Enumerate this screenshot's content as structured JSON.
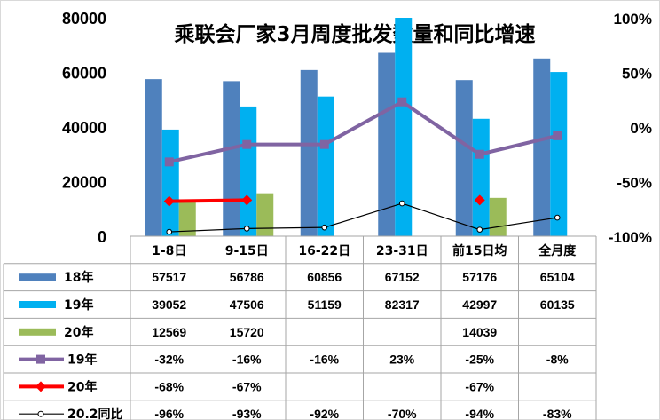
{
  "chart_data": {
    "type": "bar",
    "title": "乘联会厂家3月周度批发数量和同比增速",
    "categories": [
      "1-8日",
      "9-15日",
      "16-22日",
      "23-31日",
      "前15日均",
      "全月度"
    ],
    "left_axis": {
      "ticks": [
        "0",
        "20000",
        "40000",
        "60000",
        "80000"
      ],
      "ylim": [
        0,
        80000
      ]
    },
    "right_axis": {
      "ticks": [
        "-100%",
        "-50%",
        "0%",
        "50%",
        "100%"
      ],
      "ylim": [
        -100,
        100
      ]
    },
    "bar_series": [
      {
        "name": "18年",
        "color": "#4f81bd",
        "values": [
          57517,
          56786,
          60856,
          67152,
          57176,
          65104
        ]
      },
      {
        "name": "19年",
        "color": "#00b0f0",
        "values": [
          39052,
          47506,
          51159,
          82317,
          42997,
          60135
        ]
      },
      {
        "name": "20年",
        "color": "#9bbb59",
        "values": [
          12569,
          15720,
          null,
          null,
          14039,
          null
        ]
      }
    ],
    "line_series": [
      {
        "name": "19年",
        "color": "#8064a2",
        "marker": "square",
        "values": [
          -32,
          -16,
          -16,
          23,
          -25,
          -8
        ],
        "labels": [
          "-32%",
          "-16%",
          "-16%",
          "23%",
          "-25%",
          "-8%"
        ]
      },
      {
        "name": "20年",
        "color": "#ff0000",
        "marker": "diamond",
        "values": [
          -68,
          -67,
          null,
          null,
          -67,
          null
        ],
        "labels": [
          "-68%",
          "-67%",
          "",
          "",
          "-67%",
          ""
        ]
      },
      {
        "name": "20.2同比",
        "color": "#000000",
        "marker": "circle",
        "values": [
          -96,
          -93,
          -92,
          -70,
          -94,
          -83
        ],
        "labels": [
          "-96%",
          "-93%",
          "-92%",
          "-70%",
          "-94%",
          "-83%"
        ]
      }
    ]
  }
}
